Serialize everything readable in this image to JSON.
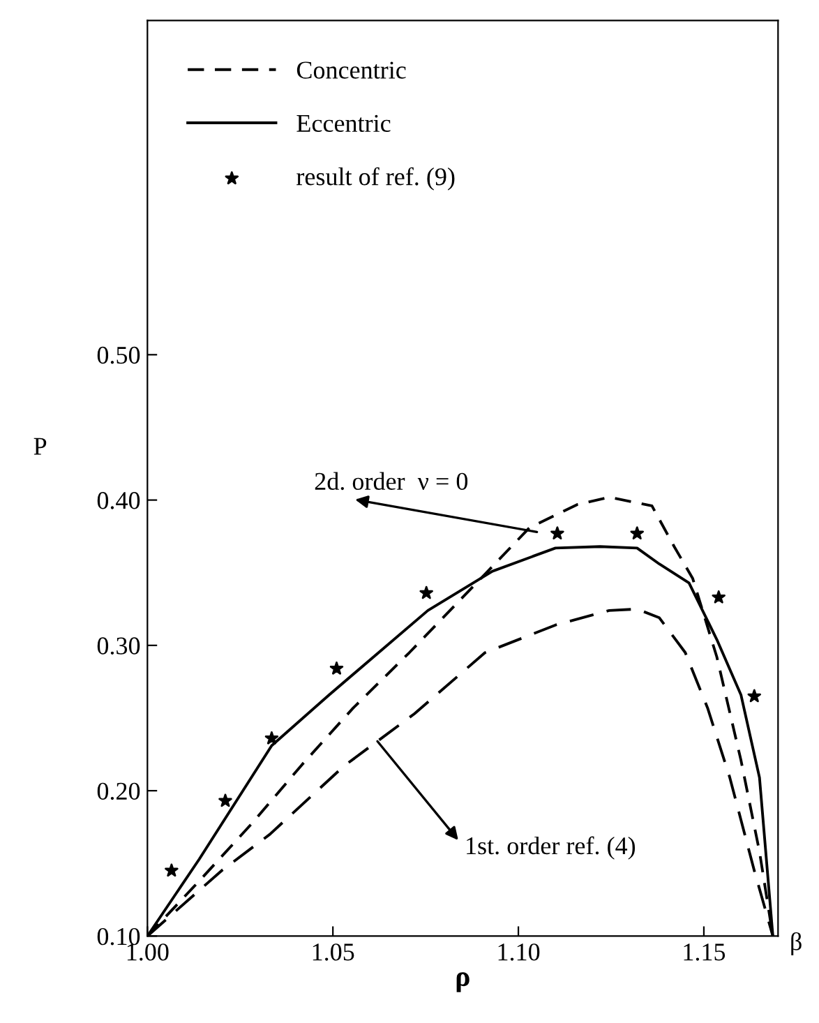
{
  "chart_data": {
    "type": "line",
    "xlabel": "ρ",
    "ylabel": "P",
    "xlim": [
      1.0,
      1.17
    ],
    "ylim": [
      0.1,
      0.73
    ],
    "xticks": [
      {
        "value": 1.0,
        "label": "1.00"
      },
      {
        "value": 1.05,
        "label": "1.05"
      },
      {
        "value": 1.1,
        "label": "1.10"
      },
      {
        "value": 1.15,
        "label": "1.15"
      }
    ],
    "yticks": [
      {
        "value": 0.1,
        "label": "0.10"
      },
      {
        "value": 0.2,
        "label": "0.20"
      },
      {
        "value": 0.3,
        "label": "0.30"
      },
      {
        "value": 0.4,
        "label": "0.40"
      },
      {
        "value": 0.5,
        "label": "0.50"
      }
    ],
    "grid": false,
    "legend": "top left",
    "series": [
      {
        "name": "Concentric",
        "color": "#000000",
        "line_style": "dashed",
        "marker": "none",
        "x": [
          1.0,
          1.014,
          1.028,
          1.0417,
          1.0555,
          1.0706,
          1.091,
          1.103,
          1.116,
          1.1245,
          1.136,
          1.142,
          1.147,
          1.1535,
          1.16,
          1.165,
          1.1686
        ],
        "values": [
          0.1,
          0.138,
          0.177,
          0.218,
          0.257,
          0.295,
          0.349,
          0.381,
          0.397,
          0.402,
          0.396,
          0.368,
          0.346,
          0.292,
          0.221,
          0.158,
          0.1
        ]
      },
      {
        "color": "#000000",
        "line_style": "dashed",
        "marker": "none",
        "x": [
          1.0,
          1.02,
          1.033,
          1.053,
          1.072,
          1.091,
          1.11,
          1.1245,
          1.132,
          1.138,
          1.145,
          1.151,
          1.157,
          1.1636,
          1.1686
        ],
        "values": [
          0.1,
          0.145,
          0.17,
          0.217,
          0.253,
          0.295,
          0.314,
          0.324,
          0.325,
          0.319,
          0.295,
          0.257,
          0.209,
          0.145,
          0.1
        ]
      },
      {
        "name": "Eccentric",
        "color": "#000000",
        "line_style": "solid",
        "marker": "none",
        "x": [
          1.0,
          1.014,
          1.0335,
          1.049,
          1.0756,
          1.093,
          1.11,
          1.122,
          1.132,
          1.138,
          1.146,
          1.1535,
          1.16,
          1.165,
          1.1686
        ],
        "values": [
          0.1,
          0.153,
          0.231,
          0.266,
          0.324,
          0.351,
          0.367,
          0.368,
          0.367,
          0.356,
          0.343,
          0.304,
          0.266,
          0.209,
          0.1
        ]
      },
      {
        "name": "result of ref. (9)",
        "type": "scatter",
        "color": "#000000",
        "marker": "star",
        "x": [
          1.0065,
          1.021,
          1.0335,
          1.051,
          1.0752,
          1.1105,
          1.132,
          1.154,
          1.1636
        ],
        "values": [
          0.145,
          0.193,
          0.236,
          0.284,
          0.336,
          0.377,
          0.377,
          0.333,
          0.265
        ]
      }
    ],
    "annotations": [
      {
        "text": "2d. order  ν = 0",
        "x": 1.105,
        "y": 0.378
      },
      {
        "text": "1st. order ref. (4)",
        "x": 1.062,
        "y": 0.234
      },
      "β"
    ]
  }
}
